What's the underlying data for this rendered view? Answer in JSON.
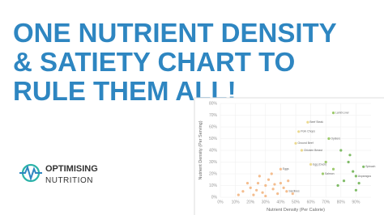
{
  "headline": [
    "ONE NUTRIENT DENSITY",
    "& SATIETY CHART TO",
    "RULE THEM ALL!"
  ],
  "logo": {
    "line1": "OPTIMISING",
    "line2": "NUTRITION"
  },
  "chart_data": {
    "type": "scatter",
    "xlabel": "Nutrient Density (Per Calorie)",
    "ylabel": "Nutrient Density (Per Serving)",
    "xlim": [
      0,
      100
    ],
    "xticks": [
      {
        "value": 0,
        "label": "0%"
      },
      {
        "value": 10,
        "label": "10%"
      },
      {
        "value": 20,
        "label": "20%"
      },
      {
        "value": 30,
        "label": "30%"
      },
      {
        "value": 40,
        "label": "40%"
      },
      {
        "value": 50,
        "label": "50%"
      },
      {
        "value": 60,
        "label": "60%"
      },
      {
        "value": 70,
        "label": "70%"
      },
      {
        "value": 80,
        "label": "80%"
      },
      {
        "value": 90,
        "label": "90%"
      }
    ],
    "ylim": [
      0,
      80
    ],
    "yticks": [
      {
        "value": 0,
        "label": "0%"
      },
      {
        "value": 10,
        "label": "10%"
      },
      {
        "value": 20,
        "label": "20%"
      },
      {
        "value": 30,
        "label": "30%"
      },
      {
        "value": 40,
        "label": "40%"
      },
      {
        "value": 50,
        "label": "50%"
      },
      {
        "value": 60,
        "label": "60%"
      },
      {
        "value": 70,
        "label": "70%"
      },
      {
        "value": 80,
        "label": "80%"
      }
    ],
    "grid": true,
    "x": [
      75,
      58,
      52,
      50,
      54,
      72,
      60,
      95,
      90,
      68,
      40,
      44,
      15,
      20,
      25,
      28,
      30,
      32,
      35,
      38,
      22,
      18,
      26,
      34,
      40,
      42,
      45,
      12,
      30,
      36,
      24,
      48,
      80,
      85,
      88,
      78,
      82,
      92,
      86,
      75,
      70,
      90
    ],
    "y": [
      72,
      64,
      56,
      46,
      40,
      50,
      28,
      26,
      18,
      20,
      24,
      5,
      5,
      8,
      12,
      4,
      10,
      15,
      7,
      3,
      2,
      12,
      18,
      20,
      12,
      8,
      14,
      2,
      1,
      11,
      6,
      3,
      40,
      30,
      22,
      10,
      14,
      12,
      36,
      24,
      30,
      6
    ],
    "labels": [
      "Lamb Liver",
      "Beef Steak",
      "Pork Chops",
      "Ground Beef",
      "Chicken Breast",
      "Oysters",
      "Egg (Duck)",
      "Spinach",
      "Asparagus",
      "Salmon",
      "Eggs",
      "Sardines",
      null,
      null,
      null,
      null,
      null,
      null,
      null,
      null,
      null,
      null,
      null,
      null,
      null,
      null,
      null,
      null,
      null,
      null,
      null,
      null,
      null,
      null,
      null,
      null,
      null,
      null,
      null,
      null,
      null,
      null
    ],
    "colors": [
      "#8cc152",
      "#e8d27a",
      "#e8d27a",
      "#e8d27a",
      "#e8d27a",
      "#8cc152",
      "#e8d27a",
      "#6ab04c",
      "#6ab04c",
      "#8cc152",
      "#f2b27a",
      "#f2b27a",
      "#f2b27a",
      "#f2b27a",
      "#f2b27a",
      "#f2b27a",
      "#f2b27a",
      "#f2b27a",
      "#f2b27a",
      "#f2b27a",
      "#f2b27a",
      "#f2b27a",
      "#f2b27a",
      "#f2b27a",
      "#f2b27a",
      "#f2b27a",
      "#f2b27a",
      "#f2b27a",
      "#f2b27a",
      "#f2b27a",
      "#f2b27a",
      "#f2b27a",
      "#6ab04c",
      "#6ab04c",
      "#6ab04c",
      "#6ab04c",
      "#6ab04c",
      "#6ab04c",
      "#6ab04c",
      "#8cc152",
      "#8cc152",
      "#6ab04c"
    ]
  }
}
